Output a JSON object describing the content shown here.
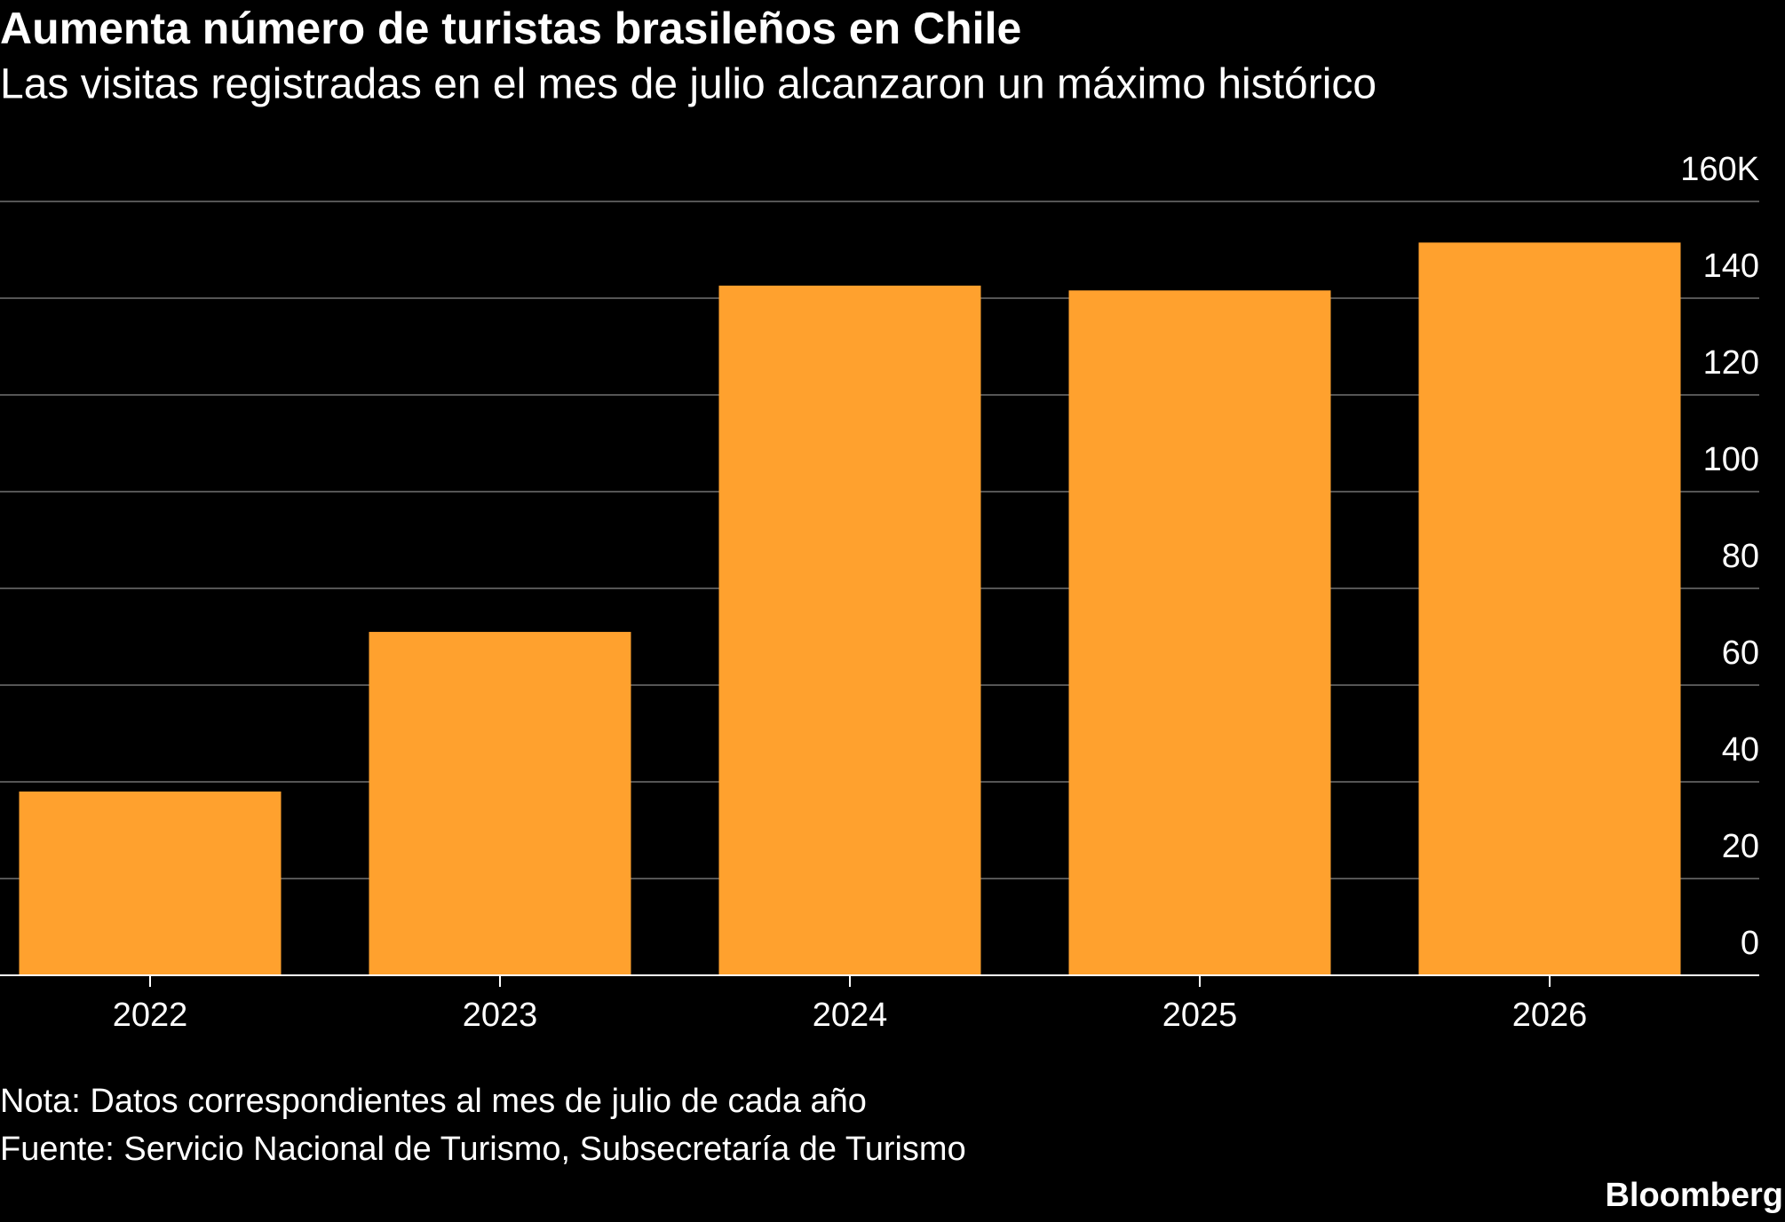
{
  "chart_data": {
    "type": "bar",
    "title": "Aumenta número de turistas brasileños en Chile",
    "subtitle": "Las visitas registradas en el mes de julio alcanzaron un máximo histórico",
    "categories": [
      "2022",
      "2023",
      "2024",
      "2025",
      "2026"
    ],
    "values": [
      38,
      71,
      142.6,
      141.6,
      151.5
    ],
    "color": "#ffa12e",
    "ylim": [
      0,
      160
    ],
    "yticks": [
      0,
      20,
      40,
      60,
      80,
      100,
      120,
      {
        "value": 160,
        "label": "160K"
      },
      140
    ],
    "grid": true,
    "note": "Nota: Datos correspondientes al mes de julio de cada año",
    "source": "Fuente: Servicio Nacional de Turismo, Subsecretaría de Turismo",
    "brand": "Bloomberg"
  }
}
